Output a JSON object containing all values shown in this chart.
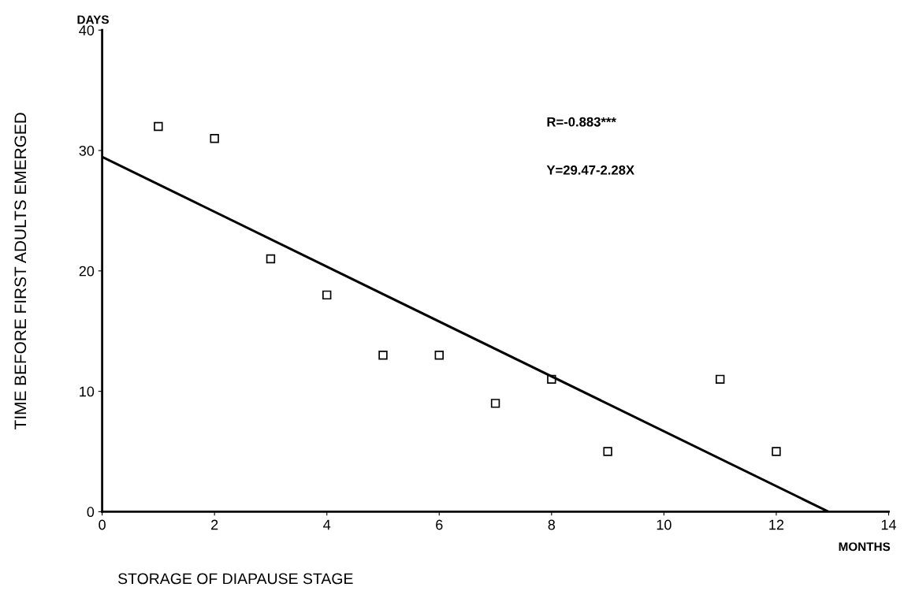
{
  "chart_data": {
    "type": "scatter",
    "xlabel": "STORAGE OF DIAPAUSE STAGE",
    "ylabel": "TIME BEFORE FIRST ADULTS EMERGED",
    "annotations": [
      "DAYS",
      "MONTHS",
      "R=-0.883***",
      "Y=29.47-2.28X"
    ],
    "grid": false,
    "legend": false,
    "xlim": [
      0,
      14
    ],
    "xticks": [
      0,
      2,
      4,
      6,
      8,
      10,
      12,
      14
    ],
    "ylim": [
      0,
      40
    ],
    "yticks": [
      0,
      10,
      20,
      30,
      40
    ],
    "series": [
      {
        "marker": "square",
        "color": "#000000",
        "x": [
          1,
          2,
          3,
          4,
          5,
          6,
          7,
          8,
          9,
          11,
          12
        ],
        "values": [
          32,
          31,
          21,
          18,
          13,
          13,
          9,
          11,
          5,
          11,
          5
        ]
      },
      {
        "type": "line",
        "marker": "none",
        "color": "#000000",
        "x": [
          0,
          12.93
        ],
        "values": [
          29.47,
          0
        ]
      }
    ]
  }
}
